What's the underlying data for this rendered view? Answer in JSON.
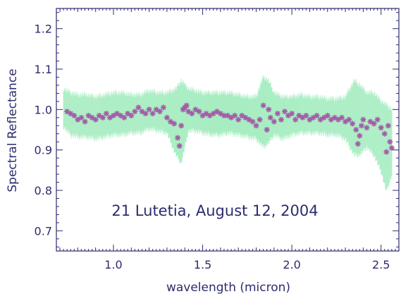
{
  "chart_data": {
    "type": "scatter",
    "title": "",
    "annotation": "21 Lutetia, August 12, 2004",
    "xlabel": "wavelength (micron)",
    "ylabel": "Spectral Reflectance",
    "xlim": [
      0.68,
      2.6
    ],
    "ylim": [
      0.65,
      1.25
    ],
    "xticks": [
      1.0,
      1.5,
      2.0,
      2.5
    ],
    "xtick_labels": [
      "1.0",
      "1.5",
      "2.0",
      "2.5"
    ],
    "yticks": [
      0.7,
      0.8,
      0.9,
      1.0,
      1.1,
      1.2
    ],
    "ytick_labels": [
      "0.7",
      "0.8",
      "0.9",
      "1.0",
      "1.1",
      "1.2"
    ],
    "grid": false,
    "colors": {
      "axis": "#2c2c6e",
      "points": "#a35ca8",
      "error_band": "#a8edc2"
    },
    "series": [
      {
        "kind": "error_band",
        "x": [
          0.72,
          0.76,
          0.8,
          0.85,
          0.9,
          0.95,
          1.0,
          1.05,
          1.1,
          1.15,
          1.2,
          1.25,
          1.3,
          1.35,
          1.38,
          1.42,
          1.46,
          1.5,
          1.55,
          1.6,
          1.65,
          1.7,
          1.75,
          1.8,
          1.84,
          1.87,
          1.9,
          1.95,
          2.0,
          2.05,
          2.1,
          2.15,
          2.2,
          2.25,
          2.3,
          2.35,
          2.38,
          2.42,
          2.46,
          2.5,
          2.53,
          2.56
        ],
        "lower": [
          0.95,
          0.93,
          0.925,
          0.925,
          0.92,
          0.925,
          0.93,
          0.93,
          0.935,
          0.935,
          0.945,
          0.94,
          0.935,
          0.88,
          0.86,
          0.94,
          0.94,
          0.935,
          0.93,
          0.93,
          0.935,
          0.93,
          0.925,
          0.92,
          0.9,
          0.91,
          0.93,
          0.92,
          0.93,
          0.935,
          0.935,
          0.935,
          0.93,
          0.93,
          0.92,
          0.88,
          0.88,
          0.9,
          0.88,
          0.84,
          0.79,
          0.83
        ],
        "upper": [
          1.06,
          1.05,
          1.045,
          1.045,
          1.04,
          1.045,
          1.05,
          1.05,
          1.045,
          1.045,
          1.055,
          1.05,
          1.05,
          1.06,
          1.08,
          1.06,
          1.055,
          1.05,
          1.05,
          1.05,
          1.05,
          1.045,
          1.04,
          1.04,
          1.09,
          1.08,
          1.05,
          1.04,
          1.04,
          1.045,
          1.04,
          1.04,
          1.035,
          1.035,
          1.04,
          1.08,
          1.07,
          1.05,
          1.05,
          1.03,
          1.02,
          1.01
        ]
      },
      {
        "kind": "points",
        "x": [
          0.74,
          0.76,
          0.78,
          0.8,
          0.82,
          0.84,
          0.86,
          0.88,
          0.9,
          0.92,
          0.94,
          0.96,
          0.98,
          1.0,
          1.02,
          1.04,
          1.06,
          1.08,
          1.1,
          1.12,
          1.14,
          1.16,
          1.18,
          1.2,
          1.22,
          1.24,
          1.26,
          1.28,
          1.3,
          1.32,
          1.34,
          1.36,
          1.37,
          1.38,
          1.39,
          1.4,
          1.41,
          1.42,
          1.44,
          1.46,
          1.48,
          1.5,
          1.52,
          1.54,
          1.56,
          1.58,
          1.6,
          1.62,
          1.64,
          1.66,
          1.68,
          1.7,
          1.72,
          1.74,
          1.76,
          1.78,
          1.8,
          1.82,
          1.84,
          1.86,
          1.87,
          1.88,
          1.9,
          1.92,
          1.94,
          1.96,
          1.98,
          2.0,
          2.02,
          2.04,
          2.06,
          2.08,
          2.1,
          2.12,
          2.14,
          2.16,
          2.18,
          2.2,
          2.22,
          2.24,
          2.26,
          2.28,
          2.3,
          2.32,
          2.34,
          2.36,
          2.37,
          2.38,
          2.39,
          2.4,
          2.42,
          2.44,
          2.46,
          2.48,
          2.5,
          2.52,
          2.53,
          2.54,
          2.55,
          2.56
        ],
        "y": [
          0.995,
          0.99,
          0.985,
          0.975,
          0.98,
          0.97,
          0.985,
          0.98,
          0.975,
          0.985,
          0.98,
          0.99,
          0.98,
          0.985,
          0.99,
          0.985,
          0.98,
          0.99,
          0.985,
          0.995,
          1.005,
          0.995,
          0.99,
          1.0,
          0.99,
          1.0,
          0.995,
          1.005,
          0.98,
          0.97,
          0.965,
          0.93,
          0.91,
          0.96,
          1.0,
          1.005,
          1.01,
          0.995,
          0.99,
          1.0,
          0.995,
          0.985,
          0.99,
          0.985,
          0.99,
          0.995,
          0.99,
          0.985,
          0.985,
          0.98,
          0.985,
          0.975,
          0.985,
          0.98,
          0.975,
          0.97,
          0.96,
          0.975,
          1.01,
          0.95,
          1.0,
          0.98,
          0.97,
          0.99,
          0.975,
          0.995,
          0.985,
          0.99,
          0.975,
          0.985,
          0.98,
          0.985,
          0.975,
          0.98,
          0.985,
          0.975,
          0.98,
          0.985,
          0.975,
          0.98,
          0.975,
          0.98,
          0.97,
          0.975,
          0.965,
          0.95,
          0.915,
          0.935,
          0.96,
          0.975,
          0.955,
          0.97,
          0.965,
          0.975,
          0.955,
          0.94,
          0.895,
          0.96,
          0.92,
          0.905
        ]
      }
    ]
  }
}
